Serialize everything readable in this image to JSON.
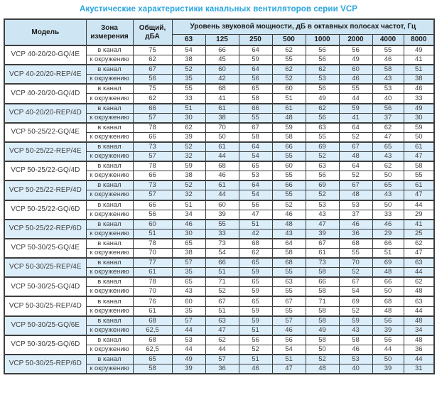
{
  "page_title": "Акустические характеристики канальных вентиляторов  серии VCP",
  "colors": {
    "title": "#2AA5DE",
    "header_bg": "#CEE5F3",
    "shaded_row_bg": "#DCEEFA",
    "border": "#3E3E3E"
  },
  "table": {
    "headers": {
      "model": "Модель",
      "zone": "Зона измерения",
      "total": "Общий, дБА",
      "spl_group": "Уровень звуковой мощности, дБ в октавных полосах частот, Гц",
      "frequencies": [
        "63",
        "125",
        "250",
        "500",
        "1000",
        "2000",
        "4000",
        "8000"
      ]
    },
    "rows": [
      {
        "model": "VCP 40-20/20-GQ/4E",
        "shaded": false,
        "measurements": [
          {
            "zone": "в канал",
            "total": "75",
            "values": [
              "54",
              "66",
              "64",
              "62",
              "56",
              "56",
              "55",
              "49"
            ]
          },
          {
            "zone": "к окружению",
            "total": "62",
            "values": [
              "38",
              "45",
              "59",
              "55",
              "56",
              "49",
              "46",
              "41"
            ]
          }
        ]
      },
      {
        "model": "VCP 40-20/20-REP/4E",
        "shaded": true,
        "measurements": [
          {
            "zone": "в канал",
            "total": "67",
            "values": [
              "52",
              "60",
              "64",
              "62",
              "62",
              "60",
              "58",
              "51"
            ]
          },
          {
            "zone": "к окружению",
            "total": "56",
            "values": [
              "35",
              "42",
              "56",
              "52",
              "53",
              "46",
              "43",
              "38"
            ]
          }
        ]
      },
      {
        "model": "VCP 40-20/20-GQ/4D",
        "shaded": false,
        "measurements": [
          {
            "zone": "в канал",
            "total": "75",
            "values": [
              "55",
              "68",
              "65",
              "60",
              "56",
              "55",
              "53",
              "46"
            ]
          },
          {
            "zone": "к окружению",
            "total": "62",
            "values": [
              "33",
              "41",
              "58",
              "51",
              "49",
              "44",
              "40",
              "33"
            ]
          }
        ]
      },
      {
        "model": "VCP 40-20/20-REP/4D",
        "shaded": true,
        "measurements": [
          {
            "zone": "в канал",
            "total": "66",
            "values": [
              "51",
              "61",
              "66",
              "61",
              "62",
              "59",
              "56",
              "49"
            ]
          },
          {
            "zone": "к окружению",
            "total": "57",
            "values": [
              "30",
              "38",
              "55",
              "48",
              "56",
              "41",
              "37",
              "30"
            ]
          }
        ]
      },
      {
        "model": "VCP 50-25/22-GQ/4E",
        "shaded": false,
        "measurements": [
          {
            "zone": "в канал",
            "total": "78",
            "values": [
              "62",
              "70",
              "67",
              "59",
              "63",
              "64",
              "62",
              "59"
            ]
          },
          {
            "zone": "к окружению",
            "total": "66",
            "values": [
              "39",
              "50",
              "58",
              "58",
              "55",
              "52",
              "47",
              "50"
            ]
          }
        ]
      },
      {
        "model": "VCP 50-25/22-REP/4E",
        "shaded": true,
        "measurements": [
          {
            "zone": "в канал",
            "total": "73",
            "values": [
              "52",
              "61",
              "64",
              "66",
              "69",
              "67",
              "65",
              "61"
            ]
          },
          {
            "zone": "к окружению",
            "total": "57",
            "values": [
              "32",
              "44",
              "54",
              "55",
              "52",
              "48",
              "43",
              "47"
            ]
          }
        ]
      },
      {
        "model": "VCP 50-25/22-GQ/4D",
        "shaded": false,
        "measurements": [
          {
            "zone": "в канал",
            "total": "78",
            "values": [
              "59",
              "68",
              "65",
              "60",
              "63",
              "64",
              "62",
              "58"
            ]
          },
          {
            "zone": "к окружению",
            "total": "66",
            "values": [
              "38",
              "46",
              "53",
              "55",
              "56",
              "52",
              "50",
              "55"
            ]
          }
        ]
      },
      {
        "model": "VCP 50-25/22-REP/4D",
        "shaded": true,
        "measurements": [
          {
            "zone": "в канал",
            "total": "73",
            "values": [
              "52",
              "61",
              "64",
              "66",
              "69",
              "67",
              "65",
              "61"
            ]
          },
          {
            "zone": "к окружению",
            "total": "57",
            "values": [
              "32",
              "44",
              "54",
              "55",
              "52",
              "48",
              "43",
              "47"
            ]
          }
        ]
      },
      {
        "model": "VCP 50-25/22-GQ/6D",
        "shaded": false,
        "measurements": [
          {
            "zone": "в канал",
            "total": "66",
            "values": [
              "51",
              "60",
              "56",
              "52",
              "53",
              "53",
              "50",
              "44"
            ]
          },
          {
            "zone": "к окружению",
            "total": "56",
            "values": [
              "34",
              "39",
              "47",
              "46",
              "43",
              "37",
              "33",
              "29"
            ]
          }
        ]
      },
      {
        "model": "VCP 50-25/22-REP/6D",
        "shaded": true,
        "measurements": [
          {
            "zone": "в канал",
            "total": "60",
            "values": [
              "46",
              "55",
              "51",
              "48",
              "47",
              "46",
              "46",
              "41"
            ]
          },
          {
            "zone": "к окружению",
            "total": "51",
            "values": [
              "30",
              "33",
              "42",
              "43",
              "39",
              "36",
              "29",
              "25"
            ]
          }
        ]
      },
      {
        "model": "VCP 50-30/25-GQ/4E",
        "shaded": false,
        "measurements": [
          {
            "zone": "в канал",
            "total": "78",
            "values": [
              "65",
              "73",
              "68",
              "64",
              "67",
              "68",
              "66",
              "62"
            ]
          },
          {
            "zone": "к окружению",
            "total": "70",
            "values": [
              "38",
              "54",
              "62",
              "58",
              "61",
              "55",
              "51",
              "47"
            ]
          }
        ]
      },
      {
        "model": "VCP 50-30/25-REP/4E",
        "shaded": true,
        "measurements": [
          {
            "zone": "в канал",
            "total": "77",
            "values": [
              "57",
              "66",
              "65",
              "68",
              "73",
              "70",
              "69",
              "63"
            ]
          },
          {
            "zone": "к окружению",
            "total": "61",
            "values": [
              "35",
              "51",
              "59",
              "55",
              "58",
              "52",
              "48",
              "44"
            ]
          }
        ]
      },
      {
        "model": "VCP 50-30/25-GQ/4D",
        "shaded": false,
        "measurements": [
          {
            "zone": "в канал",
            "total": "78",
            "values": [
              "65",
              "71",
              "65",
              "63",
              "66",
              "67",
              "66",
              "62"
            ]
          },
          {
            "zone": "к окружению",
            "total": "70",
            "values": [
              "43",
              "52",
              "59",
              "55",
              "58",
              "54",
              "50",
              "48"
            ]
          }
        ]
      },
      {
        "model": "VCP 50-30/25-REP/4D",
        "shaded": false,
        "measurements": [
          {
            "zone": "в канал",
            "total": "76",
            "values": [
              "60",
              "67",
              "65",
              "67",
              "71",
              "69",
              "68",
              "63"
            ]
          },
          {
            "zone": "к окружению",
            "total": "61",
            "values": [
              "35",
              "51",
              "59",
              "55",
              "58",
              "52",
              "48",
              "44"
            ]
          }
        ]
      },
      {
        "model": "VCP 50-30/25-GQ/6E",
        "shaded": true,
        "measurements": [
          {
            "zone": "в канал",
            "total": "68",
            "values": [
              "57",
              "63",
              "59",
              "57",
              "58",
              "59",
              "56",
              "48"
            ]
          },
          {
            "zone": "к окружению",
            "total": "62,5",
            "values": [
              "44",
              "47",
              "51",
              "46",
              "49",
              "43",
              "39",
              "34"
            ]
          }
        ]
      },
      {
        "model": "VCP 50-30/25-GQ/6D",
        "shaded": false,
        "measurements": [
          {
            "zone": "в канал",
            "total": "68",
            "values": [
              "53",
              "62",
              "56",
              "56",
              "58",
              "58",
              "56",
              "48"
            ]
          },
          {
            "zone": "к окружению",
            "total": "62,5",
            "values": [
              "44",
              "44",
              "52",
              "54",
              "50",
              "46",
              "44",
              "36"
            ]
          }
        ]
      },
      {
        "model": "VCP 50-30/25-REP/6D",
        "shaded": true,
        "measurements": [
          {
            "zone": "в канал",
            "total": "65",
            "values": [
              "49",
              "57",
              "51",
              "51",
              "52",
              "53",
              "50",
              "44"
            ]
          },
          {
            "zone": "к окружению",
            "total": "58",
            "values": [
              "39",
              "36",
              "46",
              "47",
              "48",
              "40",
              "39",
              "31"
            ]
          }
        ]
      }
    ]
  }
}
